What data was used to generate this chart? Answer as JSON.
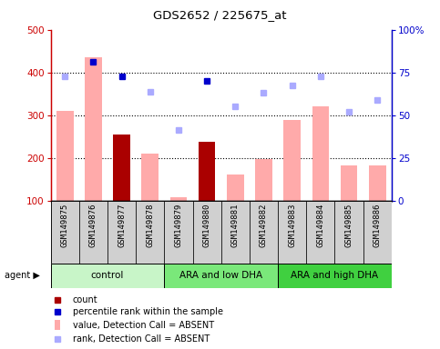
{
  "title": "GDS2652 / 225675_at",
  "samples": [
    "GSM149875",
    "GSM149876",
    "GSM149877",
    "GSM149878",
    "GSM149879",
    "GSM149880",
    "GSM149881",
    "GSM149882",
    "GSM149883",
    "GSM149884",
    "GSM149885",
    "GSM149886"
  ],
  "groups": [
    {
      "label": "control",
      "color": "#c8f5c8",
      "indices": [
        0,
        1,
        2,
        3
      ]
    },
    {
      "label": "ARA and low DHA",
      "color": "#7ae87a",
      "indices": [
        4,
        5,
        6,
        7
      ]
    },
    {
      "label": "ARA and high DHA",
      "color": "#40d040",
      "indices": [
        8,
        9,
        10,
        11
      ]
    }
  ],
  "bar_values": [
    310,
    435,
    255,
    210,
    108,
    237,
    162,
    198,
    288,
    320,
    182,
    182
  ],
  "bar_colors": [
    "#ffaaaa",
    "#ffaaaa",
    "#aa0000",
    "#ffaaaa",
    "#ffaaaa",
    "#aa0000",
    "#ffaaaa",
    "#ffaaaa",
    "#ffaaaa",
    "#ffaaaa",
    "#ffaaaa",
    "#ffaaaa"
  ],
  "rank_dots": [
    390,
    425,
    390,
    355,
    265,
    380,
    320,
    352,
    370,
    390,
    308,
    335
  ],
  "rank_dot_colors": [
    "#aaaaff",
    "#0000cc",
    "#0000cc",
    "#aaaaff",
    "#aaaaff",
    "#0000cc",
    "#aaaaff",
    "#aaaaff",
    "#aaaaff",
    "#aaaaff",
    "#aaaaff",
    "#aaaaff"
  ],
  "ylim_left": [
    100,
    500
  ],
  "ylim_right": [
    0,
    100
  ],
  "yticks_left": [
    100,
    200,
    300,
    400,
    500
  ],
  "yticks_right": [
    0,
    25,
    50,
    75,
    100
  ],
  "ytick_labels_right": [
    "0",
    "25",
    "50",
    "75",
    "100%"
  ],
  "grid_lines": [
    200,
    300,
    400
  ],
  "bar_width": 0.6,
  "left_axis_color": "#cc0000",
  "right_axis_color": "#0000cc",
  "sample_box_color": "#d0d0d0",
  "legend_items": [
    {
      "color": "#aa0000",
      "type": "square",
      "label": "count"
    },
    {
      "color": "#0000cc",
      "type": "square",
      "label": "percentile rank within the sample"
    },
    {
      "color": "#ffaaaa",
      "type": "bar",
      "label": "value, Detection Call = ABSENT"
    },
    {
      "color": "#aaaaff",
      "type": "square",
      "label": "rank, Detection Call = ABSENT"
    }
  ]
}
